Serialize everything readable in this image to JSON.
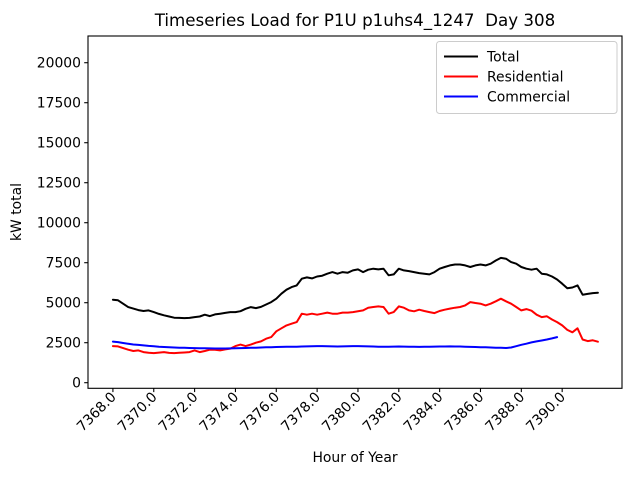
{
  "figure": {
    "background": "#ffffff",
    "border_color": "#000000"
  },
  "chart_data": {
    "type": "line",
    "title": "Timeseries Load for P1U p1uhs4_1247  Day 308",
    "xlabel": "Hour of Year",
    "ylabel": "kW total",
    "grid": false,
    "legend": {
      "position": "upper right",
      "border_color": "#cccccc",
      "background": "#ffffff"
    },
    "xlim": [
      7366.78,
      7392.93
    ],
    "ylim": [
      -350,
      21670
    ],
    "x_ticks": [
      7368,
      7370,
      7372,
      7374,
      7376,
      7378,
      7380,
      7382,
      7384,
      7386,
      7388,
      7390
    ],
    "x_tick_labels": [
      "7368.0",
      "7370.0",
      "7372.0",
      "7374.0",
      "7376.0",
      "7378.0",
      "7380.0",
      "7382.0",
      "7384.0",
      "7386.0",
      "7388.0",
      "7390.0"
    ],
    "y_ticks": [
      0,
      2500,
      5000,
      7500,
      10000,
      12500,
      15000,
      17500,
      20000
    ],
    "y_tick_labels": [
      "0",
      "2500",
      "5000",
      "7500",
      "10000",
      "12500",
      "15000",
      "17500",
      "20000"
    ],
    "x_tick_rotation_deg": 45,
    "x_start": 7368.0,
    "x_step": 0.25,
    "series": [
      {
        "name": "Total",
        "color": "#000000",
        "values": [
          5190,
          5150,
          4940,
          4725,
          4630,
          4540,
          4480,
          4520,
          4410,
          4300,
          4210,
          4140,
          4060,
          4050,
          4040,
          4050,
          4100,
          4140,
          4250,
          4160,
          4270,
          4310,
          4360,
          4410,
          4410,
          4470,
          4620,
          4725,
          4660,
          4740,
          4890,
          5040,
          5250,
          5560,
          5810,
          5975,
          6080,
          6500,
          6580,
          6520,
          6640,
          6690,
          6810,
          6910,
          6810,
          6910,
          6875,
          7020,
          7080,
          6910,
          7060,
          7125,
          7080,
          7125,
          6710,
          6770,
          7125,
          7020,
          6975,
          6910,
          6850,
          6810,
          6770,
          6910,
          7125,
          7230,
          7330,
          7390,
          7390,
          7330,
          7230,
          7330,
          7390,
          7330,
          7440,
          7640,
          7800,
          7750,
          7540,
          7440,
          7230,
          7125,
          7060,
          7125,
          6810,
          6770,
          6640,
          6450,
          6190,
          5900,
          5950,
          6080,
          5500,
          5550,
          5600,
          5620
        ]
      },
      {
        "name": "Residential",
        "color": "#ff0000",
        "values": [
          2290,
          2270,
          2160,
          2060,
          1980,
          2020,
          1910,
          1870,
          1850,
          1880,
          1910,
          1860,
          1850,
          1870,
          1890,
          1910,
          2020,
          1910,
          1980,
          2060,
          2060,
          2020,
          2080,
          2130,
          2290,
          2380,
          2290,
          2380,
          2500,
          2580,
          2750,
          2850,
          3210,
          3400,
          3580,
          3690,
          3790,
          4310,
          4250,
          4310,
          4250,
          4310,
          4380,
          4310,
          4310,
          4380,
          4380,
          4410,
          4460,
          4520,
          4690,
          4730,
          4770,
          4730,
          4310,
          4410,
          4770,
          4690,
          4520,
          4460,
          4560,
          4480,
          4410,
          4350,
          4480,
          4560,
          4630,
          4690,
          4730,
          4830,
          5040,
          4980,
          4940,
          4830,
          4940,
          5090,
          5250,
          5090,
          4940,
          4730,
          4520,
          4600,
          4500,
          4250,
          4100,
          4150,
          3950,
          3790,
          3580,
          3300,
          3150,
          3400,
          2700,
          2600,
          2650,
          2560
        ]
      },
      {
        "name": "Commercial",
        "color": "#0000ff",
        "values": [
          2570,
          2540,
          2480,
          2430,
          2390,
          2360,
          2330,
          2300,
          2280,
          2250,
          2230,
          2210,
          2200,
          2190,
          2180,
          2170,
          2160,
          2155,
          2150,
          2145,
          2140,
          2140,
          2140,
          2145,
          2150,
          2160,
          2170,
          2180,
          2190,
          2200,
          2210,
          2220,
          2230,
          2240,
          2250,
          2250,
          2250,
          2260,
          2270,
          2280,
          2290,
          2290,
          2280,
          2270,
          2260,
          2270,
          2280,
          2290,
          2290,
          2280,
          2270,
          2260,
          2250,
          2250,
          2250,
          2255,
          2260,
          2255,
          2250,
          2245,
          2240,
          2245,
          2250,
          2255,
          2260,
          2265,
          2270,
          2265,
          2260,
          2250,
          2240,
          2230,
          2220,
          2210,
          2200,
          2190,
          2180,
          2170,
          2200,
          2280,
          2370,
          2440,
          2520,
          2580,
          2640,
          2700,
          2770,
          2850
        ]
      }
    ]
  }
}
